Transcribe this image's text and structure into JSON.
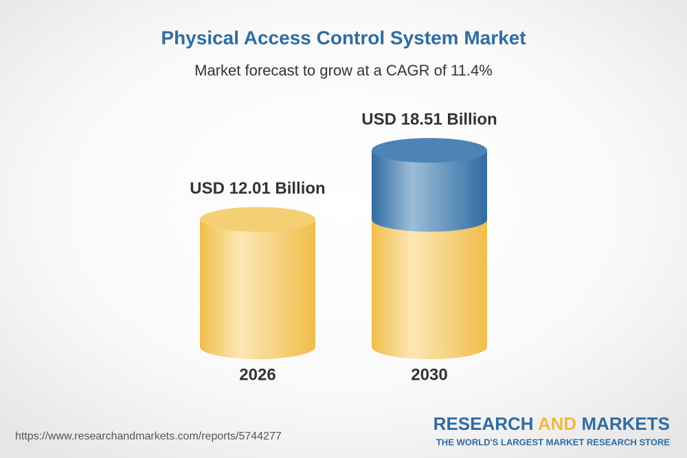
{
  "chart_data": {
    "type": "cylinder",
    "title": "Physical Access Control System Market",
    "subtitle": "Market forecast to grow at a CAGR of 11.4%",
    "categories": [
      "2026",
      "2030"
    ],
    "values": [
      12.01,
      18.51
    ],
    "value_labels": [
      "USD 12.01 Billion",
      "USD 18.51 Billion"
    ],
    "color": "#f0bd4a",
    "highlight_color": "#2f6ca2"
  },
  "footer": {
    "source": "https://www.researchandmarkets.com/reports/5744277",
    "logo": {
      "word1": "RESEARCH",
      "word2": "AND",
      "word3": "MARKETS",
      "tagline": "THE WORLD'S LARGEST MARKET RESEARCH STORE"
    }
  }
}
